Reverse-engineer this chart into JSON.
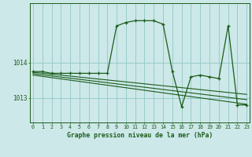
{
  "hours": [
    0,
    1,
    2,
    3,
    4,
    5,
    6,
    7,
    8,
    9,
    10,
    11,
    12,
    13,
    14,
    15,
    16,
    17,
    18,
    19,
    20,
    21,
    22,
    23
  ],
  "pressure": [
    1013.75,
    1013.75,
    1013.7,
    1013.7,
    1013.7,
    1013.7,
    1013.7,
    1013.7,
    1013.7,
    1015.05,
    1015.15,
    1015.2,
    1015.2,
    1015.2,
    1015.1,
    1013.75,
    1012.75,
    1013.6,
    1013.65,
    1013.6,
    1013.55,
    1015.05,
    1012.8,
    1012.8
  ],
  "trend1_x": [
    0,
    23
  ],
  "trend1_y": [
    1013.73,
    1013.1
  ],
  "trend2_x": [
    0,
    23
  ],
  "trend2_y": [
    1013.69,
    1012.95
  ],
  "trend3_x": [
    0,
    23
  ],
  "trend3_y": [
    1013.65,
    1012.82
  ],
  "bg_color": "#cde8e8",
  "line_color": "#1a5c1a",
  "grid_color": "#99cccc",
  "xlabel": "Graphe pression niveau de la mer (hPa)",
  "ytick_vals": [
    1013,
    1014
  ],
  "ytick_labels": [
    "1013",
    "1014"
  ],
  "ymin": 1012.3,
  "ymax": 1015.7,
  "xmin": -0.3,
  "xmax": 23.3
}
